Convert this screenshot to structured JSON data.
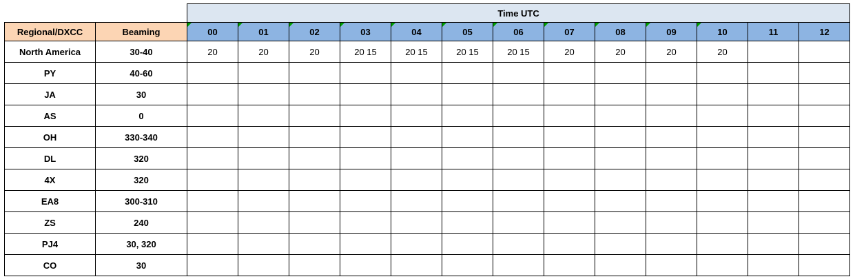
{
  "header": {
    "time_utc": "Time UTC",
    "regional": "Regional/DXCC",
    "beaming": "Beaming",
    "hours": [
      "00",
      "01",
      "02",
      "03",
      "04",
      "05",
      "06",
      "07",
      "08",
      "09",
      "10",
      "11",
      "12"
    ],
    "hours_with_marker": [
      0,
      1,
      2,
      3,
      4,
      5,
      6,
      7,
      8,
      9,
      10
    ]
  },
  "rows": [
    {
      "region": "North America",
      "beaming": "30-40",
      "cells": [
        "20",
        "20",
        "20",
        "20 15",
        "20 15",
        "20 15",
        "20 15",
        "20",
        "20",
        "20",
        "20",
        "",
        ""
      ]
    },
    {
      "region": "PY",
      "beaming": "40-60",
      "cells": [
        "",
        "",
        "",
        "",
        "",
        "",
        "",
        "",
        "",
        "",
        "",
        "",
        ""
      ]
    },
    {
      "region": "JA",
      "beaming": "30",
      "cells": [
        "",
        "",
        "",
        "",
        "",
        "",
        "",
        "",
        "",
        "",
        "",
        "",
        ""
      ]
    },
    {
      "region": "AS",
      "beaming": "0",
      "cells": [
        "",
        "",
        "",
        "",
        "",
        "",
        "",
        "",
        "",
        "",
        "",
        "",
        ""
      ]
    },
    {
      "region": "OH",
      "beaming": "330-340",
      "cells": [
        "",
        "",
        "",
        "",
        "",
        "",
        "",
        "",
        "",
        "",
        "",
        "",
        ""
      ]
    },
    {
      "region": "DL",
      "beaming": "320",
      "cells": [
        "",
        "",
        "",
        "",
        "",
        "",
        "",
        "",
        "",
        "",
        "",
        "",
        ""
      ]
    },
    {
      "region": "4X",
      "beaming": "320",
      "cells": [
        "",
        "",
        "",
        "",
        "",
        "",
        "",
        "",
        "",
        "",
        "",
        "",
        ""
      ]
    },
    {
      "region": "EA8",
      "beaming": "300-310",
      "cells": [
        "",
        "",
        "",
        "",
        "",
        "",
        "",
        "",
        "",
        "",
        "",
        "",
        ""
      ]
    },
    {
      "region": "ZS",
      "beaming": "240",
      "cells": [
        "",
        "",
        "",
        "",
        "",
        "",
        "",
        "",
        "",
        "",
        "",
        "",
        ""
      ]
    },
    {
      "region": "PJ4",
      "beaming": "30, 320",
      "cells": [
        "",
        "",
        "",
        "",
        "",
        "",
        "",
        "",
        "",
        "",
        "",
        "",
        ""
      ]
    },
    {
      "region": "CO",
      "beaming": "30",
      "cells": [
        "",
        "",
        "",
        "",
        "",
        "",
        "",
        "",
        "",
        "",
        "",
        "",
        ""
      ]
    }
  ],
  "colors": {
    "time_header_bg": "#dce6f1",
    "left_header_bg": "#fcd5b4",
    "hour_header_bg": "#8db4e2",
    "comment_marker": "#00a000"
  }
}
